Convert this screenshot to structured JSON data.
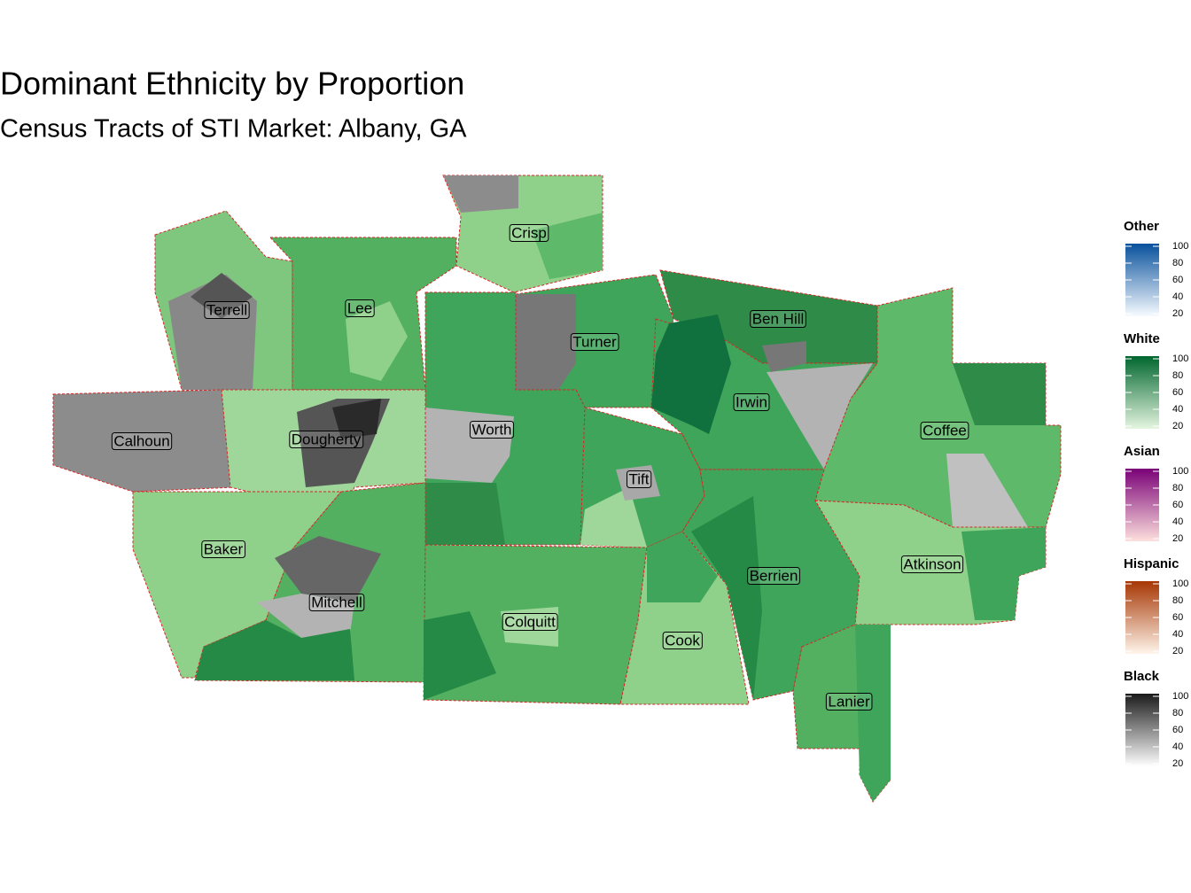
{
  "title": "Dominant Ethnicity by Proportion",
  "subtitle": "Census Tracts of STI Market: Albany, GA",
  "counties": [
    "Crisp",
    "Terrell",
    "Lee",
    "Turner",
    "Ben Hill",
    "Irwin",
    "Calhoun",
    "Dougherty",
    "Worth",
    "Coffee",
    "Tift",
    "Baker",
    "Berrien",
    "Atkinson",
    "Mitchell",
    "Colquitt",
    "Cook",
    "Lanier"
  ],
  "legend": [
    {
      "title": "Other",
      "colors": [
        "#f7fbff",
        "#08519c"
      ],
      "ticks": [
        20,
        40,
        60,
        80,
        100
      ]
    },
    {
      "title": "White",
      "colors": [
        "#e5f5e0",
        "#00662e"
      ],
      "ticks": [
        20,
        40,
        60,
        80,
        100
      ]
    },
    {
      "title": "Asian",
      "colors": [
        "#fde0dd",
        "#7a0177"
      ],
      "ticks": [
        20,
        40,
        60,
        80,
        100
      ]
    },
    {
      "title": "Hispanic",
      "colors": [
        "#fff5eb",
        "#a63603"
      ],
      "ticks": [
        20,
        40,
        60,
        80,
        100
      ]
    },
    {
      "title": "Black",
      "colors": [
        "#ffffff",
        "#1a1a1a"
      ],
      "ticks": [
        20,
        40,
        60,
        80,
        100
      ]
    }
  ]
}
